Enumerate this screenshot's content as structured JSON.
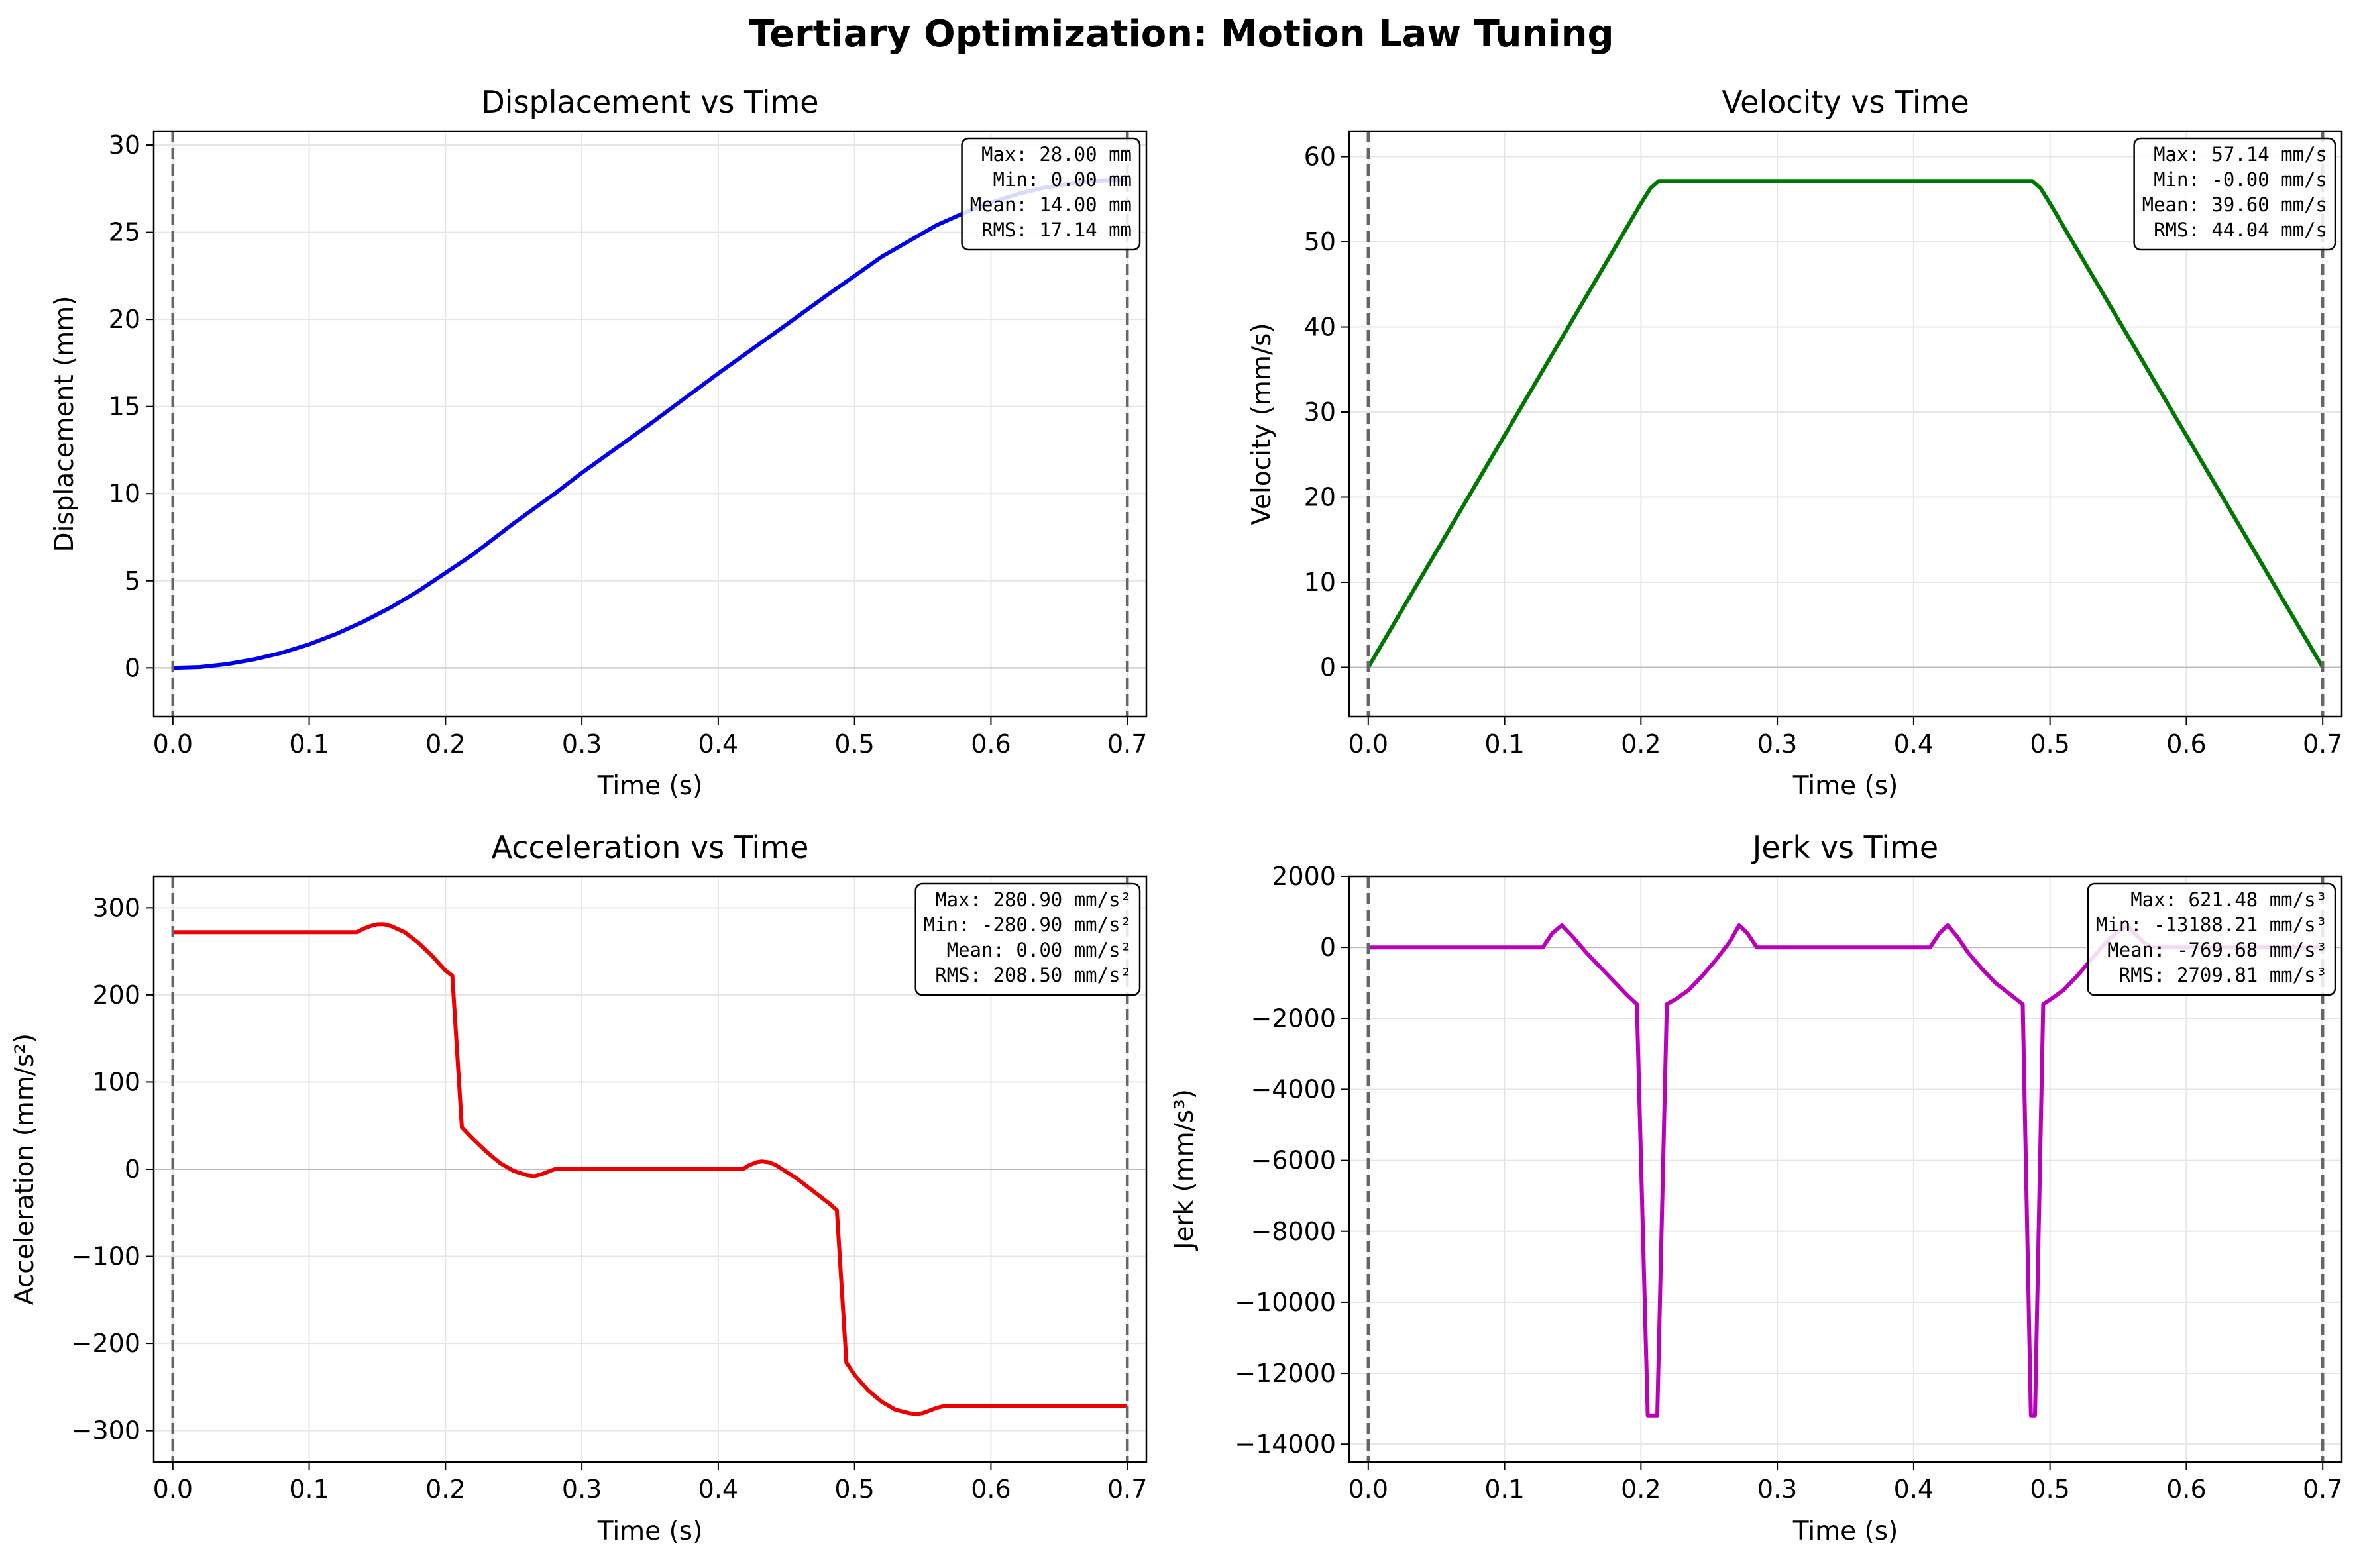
{
  "title": "Tertiary Optimization: Motion Law Tuning",
  "chart_data": [
    {
      "type": "line",
      "title": "Displacement vs Time",
      "xlabel": "Time (s)",
      "ylabel": "Displacement (mm)",
      "xlim": [
        -0.014,
        0.714
      ],
      "ylim": [
        -2.8,
        30.8
      ],
      "xticks": [
        0.0,
        0.1,
        0.2,
        0.3,
        0.4,
        0.5,
        0.6,
        0.7
      ],
      "xtick_labels": [
        "0.0",
        "0.1",
        "0.2",
        "0.3",
        "0.4",
        "0.5",
        "0.6",
        "0.7"
      ],
      "yticks": [
        0,
        5,
        10,
        15,
        20,
        25,
        30
      ],
      "ytick_labels": [
        "0",
        "5",
        "10",
        "15",
        "20",
        "25",
        "30"
      ],
      "grid": true,
      "vlines": [
        0.0,
        0.7
      ],
      "zero_line": true,
      "color": "#0000ee",
      "stats": [
        "Max: 28.00 mm",
        "Min: 0.00 mm",
        "Mean: 14.00 mm",
        "RMS: 17.14 mm"
      ],
      "series": [
        {
          "x": [
            0,
            0.02,
            0.04,
            0.06,
            0.08,
            0.1,
            0.12,
            0.14,
            0.16,
            0.18,
            0.2,
            0.22,
            0.25,
            0.28,
            0.3,
            0.35,
            0.4,
            0.45,
            0.48,
            0.5,
            0.52,
            0.54,
            0.56,
            0.58,
            0.6,
            0.62,
            0.64,
            0.66,
            0.68,
            0.7
          ],
          "y": [
            0,
            0.05,
            0.22,
            0.5,
            0.87,
            1.36,
            1.96,
            2.67,
            3.48,
            4.41,
            5.45,
            6.5,
            8.3,
            10.0,
            11.2,
            14.0,
            16.9,
            19.7,
            21.4,
            22.5,
            23.6,
            24.5,
            25.4,
            26.1,
            26.7,
            27.2,
            27.57,
            27.82,
            27.96,
            28.0
          ]
        }
      ]
    },
    {
      "type": "line",
      "title": "Velocity vs Time",
      "xlabel": "Time (s)",
      "ylabel": "Velocity (mm/s)",
      "xlim": [
        -0.014,
        0.714
      ],
      "ylim": [
        -5.8,
        63.0
      ],
      "xticks": [
        0.0,
        0.1,
        0.2,
        0.3,
        0.4,
        0.5,
        0.6,
        0.7
      ],
      "xtick_labels": [
        "0.0",
        "0.1",
        "0.2",
        "0.3",
        "0.4",
        "0.5",
        "0.6",
        "0.7"
      ],
      "yticks": [
        0,
        10,
        20,
        30,
        40,
        50,
        60
      ],
      "ytick_labels": [
        "0",
        "10",
        "20",
        "30",
        "40",
        "50",
        "60"
      ],
      "grid": true,
      "vlines": [
        0.0,
        0.7
      ],
      "zero_line": true,
      "color": "#007700",
      "stats": [
        "Max: 57.14 mm/s",
        "Min: -0.00 mm/s",
        "Mean: 39.60 mm/s",
        "RMS: 44.04 mm/s"
      ],
      "series": [
        {
          "x": [
            0,
            0.2,
            0.207,
            0.213,
            0.487,
            0.493,
            0.5,
            0.7
          ],
          "y": [
            0,
            54.5,
            56.3,
            57.14,
            57.14,
            56.3,
            54.5,
            0
          ]
        }
      ]
    },
    {
      "type": "line",
      "title": "Acceleration vs Time",
      "xlabel": "Time (s)",
      "ylabel": "Acceleration (mm/s²)",
      "xlim": [
        -0.014,
        0.714
      ],
      "ylim": [
        -336,
        336
      ],
      "xticks": [
        0.0,
        0.1,
        0.2,
        0.3,
        0.4,
        0.5,
        0.6,
        0.7
      ],
      "xtick_labels": [
        "0.0",
        "0.1",
        "0.2",
        "0.3",
        "0.4",
        "0.5",
        "0.6",
        "0.7"
      ],
      "yticks": [
        -300,
        -200,
        -100,
        0,
        100,
        200,
        300
      ],
      "ytick_labels": [
        "−300",
        "−200",
        "−100",
        "0",
        "100",
        "200",
        "300"
      ],
      "grid": true,
      "vlines": [
        0.0,
        0.7
      ],
      "zero_line": true,
      "color": "#ee0000",
      "stats": [
        "Max: 280.90 mm/s²",
        "Min: -280.90 mm/s²",
        "Mean: 0.00 mm/s²",
        "RMS: 208.50 mm/s²"
      ],
      "series": [
        {
          "x": [
            0,
            0.135,
            0.14,
            0.145,
            0.15,
            0.155,
            0.16,
            0.17,
            0.18,
            0.19,
            0.2,
            0.205,
            0.212,
            0.22,
            0.23,
            0.24,
            0.25,
            0.26,
            0.265,
            0.27,
            0.275,
            0.28,
            0.3,
            0.35,
            0.4,
            0.418,
            0.422,
            0.428,
            0.432,
            0.437,
            0.442,
            0.447,
            0.452,
            0.457,
            0.462,
            0.467,
            0.472,
            0.477,
            0.482,
            0.487,
            0.494,
            0.5,
            0.51,
            0.52,
            0.53,
            0.54,
            0.545,
            0.55,
            0.555,
            0.56,
            0.565,
            0.6,
            0.65,
            0.7
          ],
          "y": [
            272,
            272,
            276,
            279,
            281,
            281,
            279,
            272,
            260,
            245,
            228,
            222,
            48,
            35,
            20,
            7,
            -2,
            -7,
            -8,
            -6,
            -3,
            0,
            0,
            0,
            0,
            0,
            4,
            8,
            9,
            8,
            5,
            0,
            -5,
            -10,
            -16,
            -22,
            -28,
            -34,
            -40,
            -47,
            -222,
            -236,
            -254,
            -267,
            -276,
            -280,
            -281,
            -280,
            -277,
            -274,
            -272,
            -272,
            -272,
            -272
          ]
        }
      ]
    },
    {
      "type": "line",
      "title": "Jerk vs Time",
      "xlabel": "Time (s)",
      "ylabel": "Jerk (mm/s³)",
      "xlim": [
        -0.014,
        0.714
      ],
      "ylim": [
        -14500,
        2000
      ],
      "xticks": [
        0.0,
        0.1,
        0.2,
        0.3,
        0.4,
        0.5,
        0.6,
        0.7
      ],
      "xtick_labels": [
        "0.0",
        "0.1",
        "0.2",
        "0.3",
        "0.4",
        "0.5",
        "0.6",
        "0.7"
      ],
      "yticks": [
        -14000,
        -12000,
        -10000,
        -8000,
        -6000,
        -4000,
        -2000,
        0,
        2000
      ],
      "ytick_labels": [
        "−14000",
        "−12000",
        "−10000",
        "−8000",
        "−6000",
        "−4000",
        "−2000",
        "0",
        "2000"
      ],
      "grid": true,
      "vlines": [
        0.0,
        0.7
      ],
      "zero_line": true,
      "color": "#bb00bb",
      "stats": [
        "Max: 621.48 mm/s³",
        "Min: -13188.21 mm/s³",
        "Mean: -769.68 mm/s³",
        "RMS: 2709.81 mm/s³"
      ],
      "series": [
        {
          "x": [
            0,
            0.128,
            0.135,
            0.142,
            0.15,
            0.16,
            0.17,
            0.18,
            0.19,
            0.197,
            0.205,
            0.212,
            0.219,
            0.226,
            0.235,
            0.245,
            0.255,
            0.265,
            0.272,
            0.278,
            0.285,
            0.29,
            0.3,
            0.35,
            0.4,
            0.412,
            0.419,
            0.425,
            0.432,
            0.44,
            0.45,
            0.46,
            0.47,
            0.48,
            0.486,
            0.489,
            0.495,
            0.501,
            0.51,
            0.52,
            0.53,
            0.54,
            0.55,
            0.557,
            0.562,
            0.57,
            0.575,
            0.6,
            0.65,
            0.7
          ],
          "y": [
            0,
            0,
            400,
            620,
            300,
            -150,
            -550,
            -950,
            -1350,
            -1600,
            -13190,
            -13190,
            -1600,
            -1450,
            -1200,
            -800,
            -350,
            150,
            620,
            400,
            0,
            0,
            0,
            0,
            0,
            0,
            400,
            620,
            300,
            -150,
            -600,
            -1000,
            -1300,
            -1600,
            -13190,
            -13190,
            -1600,
            -1450,
            -1200,
            -800,
            -350,
            100,
            450,
            621,
            400,
            100,
            0,
            0,
            0,
            0
          ]
        }
      ]
    }
  ]
}
